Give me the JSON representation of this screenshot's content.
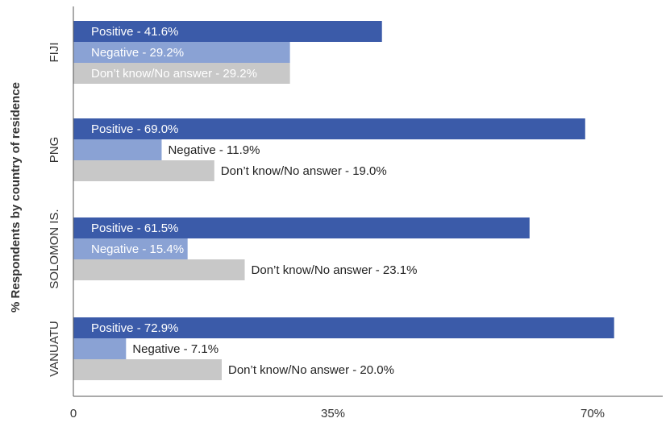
{
  "chart_data": {
    "type": "bar",
    "orientation": "horizontal",
    "ylabel": "% Respondents by country of residence",
    "xlim": [
      0,
      80
    ],
    "xticks": [
      {
        "value": 0,
        "label": "0"
      },
      {
        "value": 35,
        "label": "35%"
      },
      {
        "value": 70,
        "label": "70%"
      }
    ],
    "grid": false,
    "colors": {
      "Positive": "#3b5ba9",
      "Negative": "#8aa2d4",
      "Don't know/No answer": "#c8c8c8"
    },
    "groups": [
      {
        "category": "FIJI",
        "bars": [
          {
            "series": "Positive",
            "value": 41.6,
            "label": "Positive - 41.6%"
          },
          {
            "series": "Negative",
            "value": 29.2,
            "label": "Negative - 29.2%"
          },
          {
            "series": "Don't know/No answer",
            "value": 29.2,
            "label": "Don’t know/No answer  - 29.2%"
          }
        ]
      },
      {
        "category": "PNG",
        "bars": [
          {
            "series": "Positive",
            "value": 69.0,
            "label": "Positive - 69.0%"
          },
          {
            "series": "Negative",
            "value": 11.9,
            "label": "Negative - 11.9%"
          },
          {
            "series": "Don't know/No answer",
            "value": 19.0,
            "label": "Don’t know/No answer  - 19.0%"
          }
        ]
      },
      {
        "category": "SOLOMON IS.",
        "bars": [
          {
            "series": "Positive",
            "value": 61.5,
            "label": "Positive - 61.5%"
          },
          {
            "series": "Negative",
            "value": 15.4,
            "label": "Negative - 15.4%"
          },
          {
            "series": "Don't know/No answer",
            "value": 23.1,
            "label": "Don’t know/No answer  - 23.1%"
          }
        ]
      },
      {
        "category": "VANUATU",
        "bars": [
          {
            "series": "Positive",
            "value": 72.9,
            "label": "Positive - 72.9%"
          },
          {
            "series": "Negative",
            "value": 7.1,
            "label": "Negative - 7.1%"
          },
          {
            "series": "Don't know/No answer",
            "value": 20.0,
            "label": "Don’t know/No answer  - 20.0%"
          }
        ]
      }
    ]
  }
}
